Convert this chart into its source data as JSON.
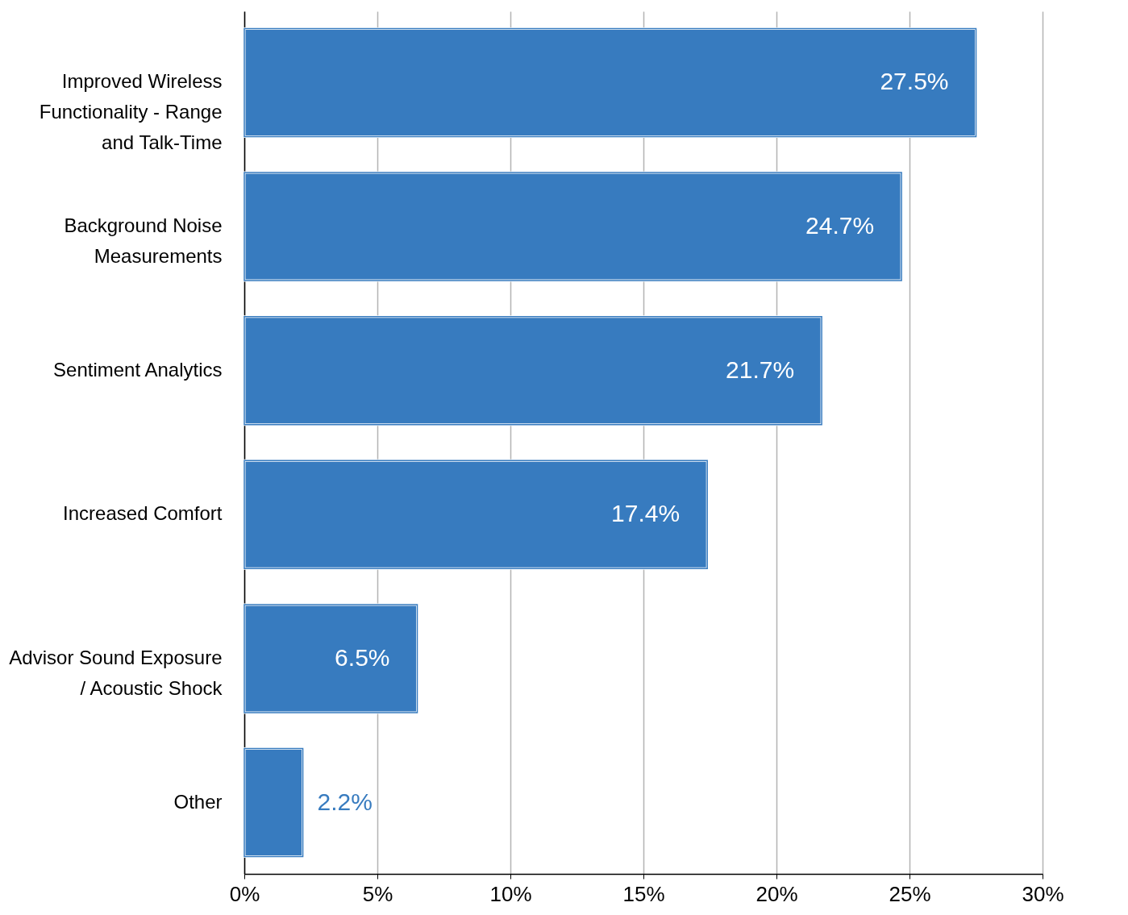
{
  "chart_data": {
    "type": "bar",
    "orientation": "horizontal",
    "categories": [
      "Improved Wireless Functionality  - Range and Talk-Time",
      "Background Noise Measurements",
      "Sentiment Analytics",
      "Increased Comfort",
      "Advisor Sound Exposure / Acoustic Shock",
      "Other"
    ],
    "values": [
      27.5,
      24.7,
      21.7,
      17.4,
      6.5,
      2.2
    ],
    "value_labels": [
      "27.5%",
      "24.7%",
      "21.7%",
      "17.4%",
      "6.5%",
      "2.2%"
    ],
    "color": "#377bbf",
    "xlim": [
      0,
      30
    ],
    "xticks": [
      {
        "value": 0,
        "label": "0%"
      },
      {
        "value": 5,
        "label": "5%"
      },
      {
        "value": 10,
        "label": "10%"
      },
      {
        "value": 15,
        "label": "15%"
      },
      {
        "value": 20,
        "label": "20%"
      },
      {
        "value": 25,
        "label": "25%"
      },
      {
        "value": 30,
        "label": "30%"
      }
    ],
    "grid": "x"
  }
}
